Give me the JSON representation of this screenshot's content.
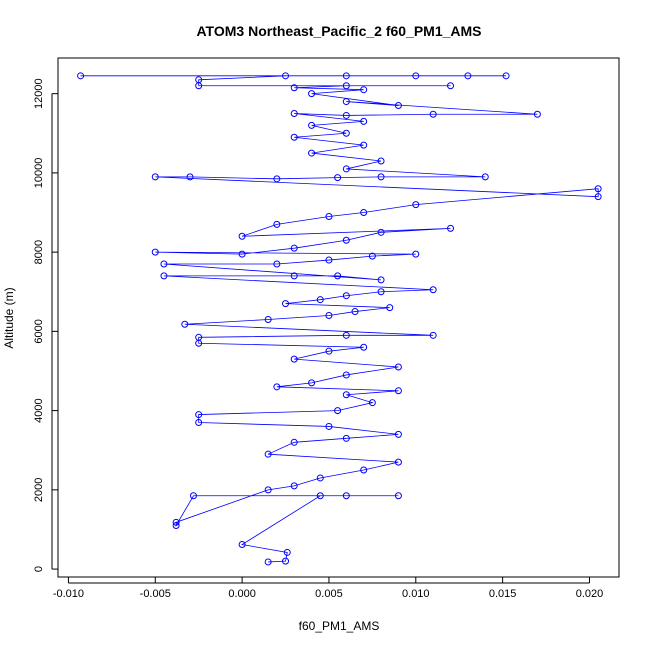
{
  "chart_data": {
    "type": "scatter",
    "title": "ATOM3 Northeast_Pacific_2 f60_PM1_AMS",
    "xlabel": "f60_PM1_AMS",
    "ylabel": "Altitude (m)",
    "xlim": [
      -0.0106,
      0.0217
    ],
    "ylim": [
      -200,
      12900
    ],
    "x_ticks": [
      -0.01,
      -0.005,
      0.0,
      0.005,
      0.01,
      0.015,
      0.02
    ],
    "x_tick_labels": [
      "-0.010",
      "-0.005",
      "0.000",
      "0.005",
      "0.010",
      "0.015",
      "0.020"
    ],
    "y_ticks": [
      0,
      2000,
      4000,
      6000,
      8000,
      10000,
      12000
    ],
    "y_tick_labels": [
      "0",
      "2000",
      "4000",
      "6000",
      "8000",
      "10000",
      "12000"
    ],
    "grid": false,
    "series": [
      {
        "color": "#0000ff",
        "marker": "open-circle",
        "connected": true,
        "points": [
          [
            0.0015,
            180
          ],
          [
            0.0025,
            200
          ],
          [
            0.0026,
            420
          ],
          [
            0.0,
            620
          ],
          [
            0.0045,
            1850
          ],
          [
            0.006,
            1850
          ],
          [
            0.009,
            1850
          ],
          [
            -0.0028,
            1850
          ],
          [
            -0.0038,
            1100
          ],
          [
            -0.0038,
            1180
          ],
          [
            0.0015,
            2000
          ],
          [
            0.003,
            2100
          ],
          [
            0.0045,
            2300
          ],
          [
            0.007,
            2500
          ],
          [
            0.009,
            2700
          ],
          [
            0.0015,
            2900
          ],
          [
            0.003,
            3200
          ],
          [
            0.006,
            3300
          ],
          [
            0.009,
            3400
          ],
          [
            0.005,
            3600
          ],
          [
            -0.0025,
            3700
          ],
          [
            -0.0025,
            3900
          ],
          [
            0.0055,
            4000
          ],
          [
            0.0075,
            4200
          ],
          [
            0.006,
            4400
          ],
          [
            0.009,
            4500
          ],
          [
            0.002,
            4600
          ],
          [
            0.004,
            4700
          ],
          [
            0.006,
            4900
          ],
          [
            0.009,
            5100
          ],
          [
            0.003,
            5300
          ],
          [
            0.005,
            5500
          ],
          [
            0.007,
            5600
          ],
          [
            -0.0025,
            5700
          ],
          [
            -0.0025,
            5850
          ],
          [
            0.006,
            5900
          ],
          [
            0.011,
            5900
          ],
          [
            -0.0033,
            6180
          ],
          [
            0.0015,
            6300
          ],
          [
            0.005,
            6400
          ],
          [
            0.0065,
            6500
          ],
          [
            0.0085,
            6600
          ],
          [
            0.0025,
            6700
          ],
          [
            0.0045,
            6800
          ],
          [
            0.006,
            6900
          ],
          [
            0.008,
            7000
          ],
          [
            0.011,
            7050
          ],
          [
            -0.0045,
            7400
          ],
          [
            0.003,
            7400
          ],
          [
            0.0055,
            7400
          ],
          [
            0.008,
            7300
          ],
          [
            -0.0045,
            7700
          ],
          [
            0.002,
            7700
          ],
          [
            0.005,
            7800
          ],
          [
            0.0075,
            7900
          ],
          [
            0.01,
            7950
          ],
          [
            -0.005,
            8000
          ],
          [
            0.0,
            7950
          ],
          [
            0.003,
            8100
          ],
          [
            0.006,
            8300
          ],
          [
            0.008,
            8500
          ],
          [
            0.012,
            8600
          ],
          [
            0.0,
            8400
          ],
          [
            0.002,
            8700
          ],
          [
            0.005,
            8900
          ],
          [
            0.007,
            9000
          ],
          [
            0.01,
            9200
          ],
          [
            0.0205,
            9600
          ],
          [
            0.0205,
            9400
          ],
          [
            -0.005,
            9900
          ],
          [
            -0.003,
            9900
          ],
          [
            0.002,
            9850
          ],
          [
            0.0055,
            9880
          ],
          [
            0.008,
            9900
          ],
          [
            0.014,
            9900
          ],
          [
            0.006,
            10100
          ],
          [
            0.008,
            10300
          ],
          [
            0.004,
            10500
          ],
          [
            0.007,
            10700
          ],
          [
            0.003,
            10900
          ],
          [
            0.006,
            11000
          ],
          [
            0.004,
            11200
          ],
          [
            0.007,
            11300
          ],
          [
            0.003,
            11500
          ],
          [
            0.006,
            11450
          ],
          [
            0.011,
            11480
          ],
          [
            0.017,
            11480
          ],
          [
            0.006,
            11800
          ],
          [
            0.009,
            11700
          ],
          [
            0.004,
            12000
          ],
          [
            0.007,
            12100
          ],
          [
            0.003,
            12150
          ],
          [
            0.006,
            12200
          ],
          [
            0.012,
            12200
          ],
          [
            -0.0025,
            12200
          ],
          [
            -0.0025,
            12350
          ],
          [
            0.0025,
            12450
          ],
          [
            0.006,
            12450
          ],
          [
            0.01,
            12450
          ],
          [
            0.013,
            12450
          ],
          [
            0.0152,
            12450
          ],
          [
            -0.0093,
            12450
          ]
        ]
      }
    ]
  }
}
